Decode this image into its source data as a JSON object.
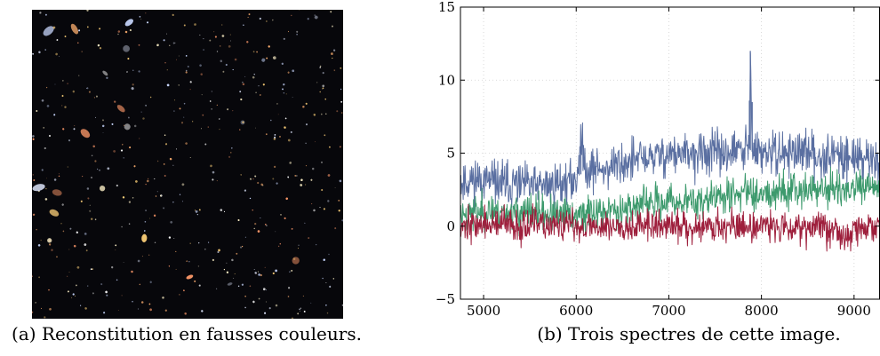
{
  "captions": {
    "a": "(a) Reconstitution en fausses couleurs.",
    "b": "(b) Trois spectres de cette image."
  },
  "colors": {
    "background": "#ffffff",
    "sky": "#07070b",
    "series_blue": "#5a6fa1",
    "series_green": "#3d9a6d",
    "series_red": "#9e1f3c",
    "grid": "#d0d0d0"
  },
  "chart_data": {
    "type": "line",
    "title": "",
    "xlabel": "",
    "ylabel": "",
    "xlim": [
      4750,
      9280
    ],
    "ylim": [
      -5,
      15
    ],
    "x_ticks": [
      5000,
      6000,
      7000,
      8000,
      9000
    ],
    "y_ticks": [
      -5,
      0,
      5,
      10,
      15
    ],
    "grid": true,
    "legend": "none",
    "series": [
      {
        "color": "#5a6fa1",
        "x": [
          4750,
          4900,
          5000,
          5200,
          5400,
          5600,
          5800,
          6000,
          6050,
          6100,
          6300,
          6500,
          6700,
          6900,
          7000,
          7200,
          7400,
          7600,
          7800,
          7870,
          7880,
          7900,
          8000,
          8200,
          8400,
          8600,
          8800,
          9000,
          9200,
          9280
        ],
        "y": [
          3.0,
          3.2,
          3.1,
          2.9,
          2.8,
          2.7,
          2.9,
          3.1,
          5.8,
          4.0,
          3.9,
          4.3,
          4.6,
          4.8,
          5.0,
          4.8,
          5.0,
          5.0,
          5.2,
          5.3,
          12.0,
          5.1,
          5.0,
          5.0,
          5.1,
          4.8,
          4.9,
          4.7,
          4.6,
          4.5
        ]
      },
      {
        "color": "#3d9a6d",
        "x": [
          4750,
          4900,
          5000,
          5200,
          5400,
          5600,
          5800,
          6000,
          6100,
          6300,
          6500,
          6700,
          6900,
          7000,
          7200,
          7400,
          7600,
          7800,
          7900,
          8000,
          8200,
          8400,
          8600,
          8800,
          9000,
          9200,
          9280
        ],
        "y": [
          0.9,
          0.9,
          1.0,
          1.0,
          0.9,
          0.9,
          0.7,
          0.7,
          0.9,
          1.0,
          1.2,
          1.5,
          1.6,
          1.7,
          1.7,
          1.8,
          2.1,
          2.3,
          2.4,
          2.3,
          2.4,
          2.6,
          2.5,
          2.5,
          2.5,
          2.6,
          2.4
        ]
      },
      {
        "color": "#9e1f3c",
        "x": [
          4750,
          4900,
          5000,
          5200,
          5400,
          5600,
          5800,
          6000,
          6200,
          6400,
          6600,
          6800,
          7000,
          7200,
          7400,
          7600,
          7800,
          8000,
          8200,
          8400,
          8600,
          8800,
          8900,
          9000,
          9200,
          9280
        ],
        "y": [
          0.1,
          0.1,
          0.1,
          0.1,
          0.0,
          0.1,
          0.0,
          0.0,
          0.0,
          0.0,
          0.1,
          0.0,
          0.0,
          0.0,
          0.0,
          0.0,
          0.0,
          0.0,
          0.0,
          0.0,
          0.0,
          -0.2,
          -1.0,
          -0.2,
          -0.1,
          0.0
        ]
      }
    ]
  }
}
